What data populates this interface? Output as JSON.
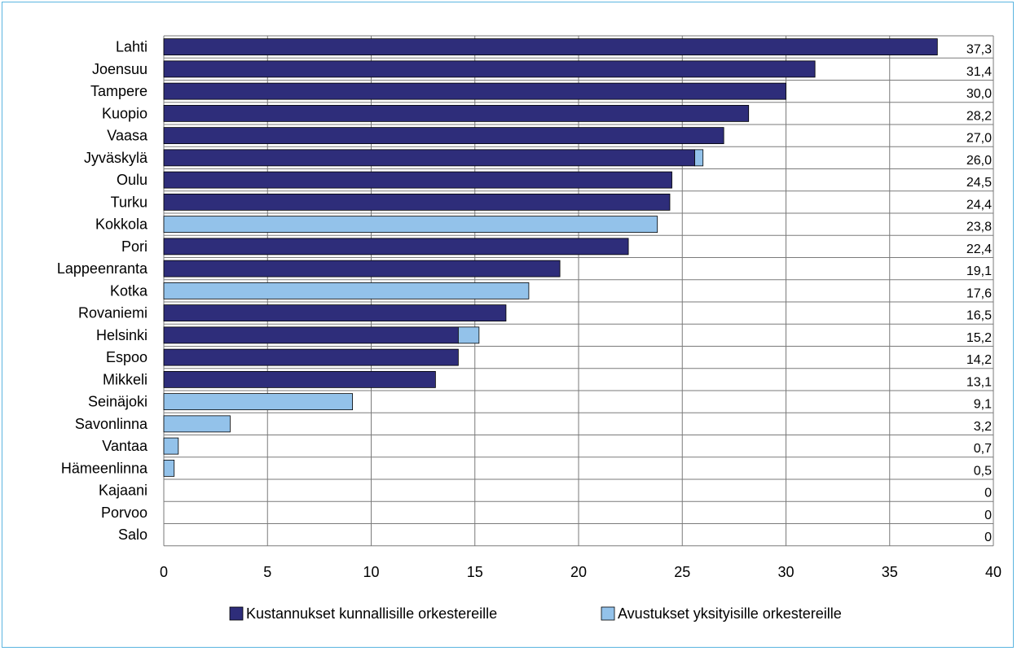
{
  "chart_data": {
    "type": "bar",
    "orientation": "horizontal",
    "categories": [
      "Lahti",
      "Joensuu",
      "Tampere",
      "Kuopio",
      "Vaasa",
      "Jyväskylä",
      "Oulu",
      "Turku",
      "Kokkola",
      "Pori",
      "Lappeenranta",
      "Kotka",
      "Rovaniemi",
      "Helsinki",
      "Espoo",
      "Mikkeli",
      "Seinäjoki",
      "Savonlinna",
      "Vantaa",
      "Hämeenlinna",
      "Kajaani",
      "Porvoo",
      "Salo"
    ],
    "series": [
      {
        "name": "Kustannukset kunnallisille orkestereille",
        "color": "#2e2d7a",
        "values": [
          37.3,
          31.4,
          30.0,
          28.2,
          27.0,
          25.6,
          24.5,
          24.4,
          0,
          22.4,
          19.1,
          0,
          16.5,
          14.2,
          14.2,
          13.1,
          0,
          0,
          0,
          0,
          0,
          0,
          0
        ]
      },
      {
        "name": "Avustukset yksityisille orkestereille",
        "color": "#93c2ea",
        "values": [
          0,
          0,
          0,
          0,
          0,
          0.4,
          0,
          0,
          23.8,
          0,
          0,
          17.6,
          0,
          1.0,
          0,
          0,
          9.1,
          3.2,
          0.7,
          0.5,
          0,
          0,
          0
        ]
      }
    ],
    "totals_labels": [
      "37,3",
      "31,4",
      "30,0",
      "28,2",
      "27,0",
      "26,0",
      "24,5",
      "24,4",
      "23,8",
      "22,4",
      "19,1",
      "17,6",
      "16,5",
      "15,2",
      "14,2",
      "13,1",
      "9,1",
      "3,2",
      "0,7",
      "0,5",
      "0",
      "0",
      "0"
    ],
    "xlim": [
      0,
      40
    ],
    "xticks": [
      "0",
      "5",
      "10",
      "15",
      "20",
      "25",
      "30",
      "35",
      "40"
    ],
    "xtick_values": [
      0,
      5,
      10,
      15,
      20,
      25,
      30,
      35,
      40
    ],
    "grid": true,
    "stacked": true,
    "legend_position": "bottom"
  }
}
